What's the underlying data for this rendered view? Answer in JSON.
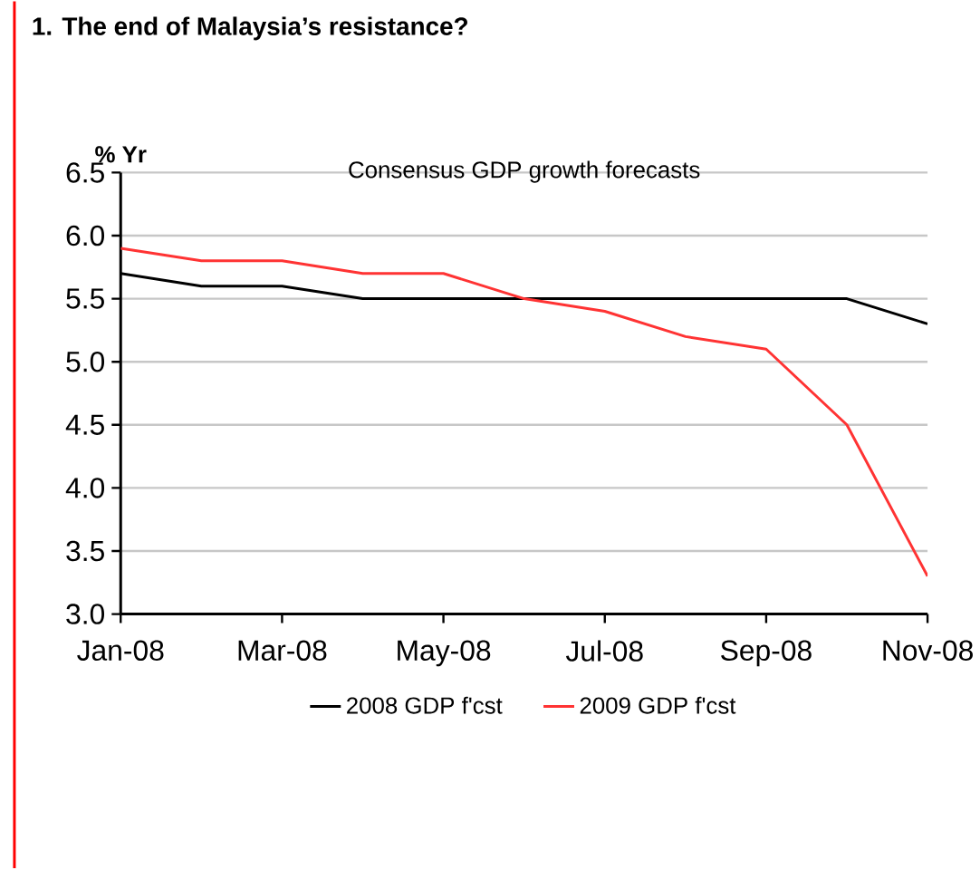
{
  "chart_data": {
    "type": "line",
    "title": "1.  The end of Malaysia’s resistance?",
    "subtitle": "Consensus GDP growth forecasts",
    "ylabel": "% Yr",
    "categories": [
      "Jan-08",
      null,
      "Mar-08",
      null,
      "May-08",
      null,
      "Jul-08",
      null,
      "Sep-08",
      null,
      "Nov-08"
    ],
    "series": [
      {
        "name": "2008 GDP f'cst",
        "color": "#000000",
        "values": [
          5.7,
          5.6,
          5.6,
          5.5,
          5.5,
          5.5,
          5.5,
          5.5,
          5.5,
          5.5,
          5.3
        ]
      },
      {
        "name": "2009 GDP f'cst",
        "color": "#ff3333",
        "values": [
          5.9,
          5.8,
          5.8,
          5.7,
          5.7,
          5.5,
          5.4,
          5.2,
          5.1,
          4.5,
          3.3
        ]
      }
    ],
    "ylim": [
      3,
      6.5
    ],
    "yticks": [
      {
        "value": 3,
        "label": "3.0"
      },
      {
        "value": 3.5,
        "label": "3.5"
      },
      {
        "value": 4,
        "label": "4.0"
      },
      {
        "value": 4.5,
        "label": "4.5"
      },
      {
        "value": 5,
        "label": "5.0"
      },
      {
        "value": 5.5,
        "label": "5.5"
      },
      {
        "value": 6,
        "label": "6.0"
      },
      {
        "value": 6.5,
        "label": "6.5"
      }
    ],
    "grid": "y",
    "legend": "bottom",
    "marker": "none",
    "line_style": "solid"
  }
}
